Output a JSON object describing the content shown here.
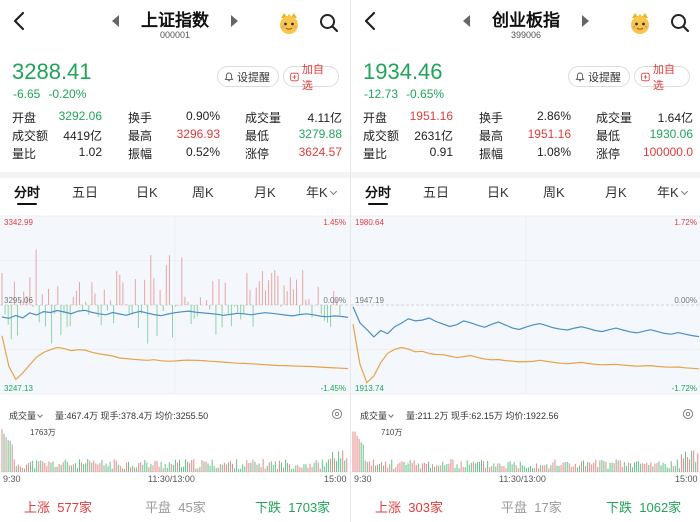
{
  "panels": [
    {
      "title": "上证指数",
      "code": "000001",
      "price": "3288.41",
      "change": "-6.65",
      "change_pct": "-0.20%",
      "buttons": {
        "alert": "设提醒",
        "add": "加自选"
      },
      "stats": [
        [
          {
            "k": "开盘",
            "v": "3292.06",
            "c": "g"
          },
          {
            "k": "换手",
            "v": "0.90%",
            "c": "d"
          },
          {
            "k": "成交量",
            "v": "4.11亿",
            "c": "d"
          }
        ],
        [
          {
            "k": "成交额",
            "v": "4419亿",
            "c": "d"
          },
          {
            "k": "最高",
            "v": "3296.93",
            "c": "r"
          },
          {
            "k": "最低",
            "v": "3279.88",
            "c": "g"
          }
        ],
        [
          {
            "k": "量比",
            "v": "1.02",
            "c": "d"
          },
          {
            "k": "振幅",
            "v": "0.52%",
            "c": "d"
          },
          {
            "k": "涨停",
            "v": "3624.57",
            "c": "r"
          }
        ]
      ],
      "tabs": [
        "分时",
        "五日",
        "日K",
        "周K",
        "月K",
        "年K"
      ],
      "active_tab": "分时",
      "chart": {
        "y_top": "3342.99",
        "y_mid": "3295.06",
        "y_bottom": "3247.13",
        "pct_top": "1.45%",
        "pct_mid": "0.00%",
        "pct_bottom": "-1.45%",
        "line_color": "#4a8fc6",
        "avg_color": "#e8a14a",
        "price_series": [
          3288.6,
          3287.9,
          3289.4,
          3288.1,
          3290.8,
          3289.7,
          3291.5,
          3291.0,
          3292.1,
          3291.3,
          3290.4,
          3291.8,
          3292.2,
          3291.1,
          3290.3,
          3289.8,
          3291.0,
          3290.2,
          3289.5,
          3290.8,
          3291.6,
          3290.7,
          3289.9,
          3289.3,
          3290.2,
          3290.9,
          3291.4,
          3291.8,
          3291.2,
          3290.8,
          3290.5,
          3290.1,
          3289.5,
          3290.0,
          3290.6,
          3290.3,
          3289.8,
          3290.4,
          3290.9,
          3290.6,
          3290.1,
          3289.6,
          3289.2,
          3289.9,
          3290.3,
          3289.8,
          3289.1,
          3288.7,
          3289.2,
          3288.9,
          3288.4
        ],
        "avg_series": [
          3278.5,
          3262.0,
          3255.0,
          3258.5,
          3262.8,
          3267.0,
          3269.5,
          3271.0,
          3272.2,
          3271.5,
          3270.5,
          3271.0,
          3270.8,
          3269.6,
          3268.8,
          3268.2,
          3267.6,
          3266.5,
          3266.2,
          3265.8,
          3265.5,
          3265.3,
          3265.6,
          3265.0,
          3264.8,
          3264.9,
          3265.2,
          3265.4,
          3265.3,
          3265.1,
          3264.8,
          3264.6,
          3264.3,
          3264.0,
          3263.7,
          3263.6,
          3263.4,
          3263.2,
          3262.9,
          3262.7,
          3262.5,
          3262.4,
          3262.2,
          3262.1,
          3262.0,
          3261.9,
          3261.6,
          3261.4,
          3261.2,
          3261.0,
          3260.8
        ]
      },
      "volume": {
        "label": "成交量",
        "total": "量:467.4万",
        "current": "现手:378.4万",
        "avg": "均价:3255.50",
        "max": "1763万",
        "t_start": "9:30",
        "t_mid": "11:30/13:00",
        "t_end": "15:00"
      },
      "breadth": {
        "up_label": "上涨",
        "up": "577家",
        "flat_label": "平盘",
        "flat": "45家",
        "down_label": "下跌",
        "down": "1703家"
      }
    },
    {
      "title": "创业板指",
      "code": "399006",
      "price": "1934.46",
      "change": "-12.73",
      "change_pct": "-0.65%",
      "buttons": {
        "alert": "设提醒",
        "add": "加自选"
      },
      "stats": [
        [
          {
            "k": "开盘",
            "v": "1951.16",
            "c": "r"
          },
          {
            "k": "换手",
            "v": "2.86%",
            "c": "d"
          },
          {
            "k": "成交量",
            "v": "1.64亿",
            "c": "d"
          }
        ],
        [
          {
            "k": "成交额",
            "v": "2631亿",
            "c": "d"
          },
          {
            "k": "最高",
            "v": "1951.16",
            "c": "r"
          },
          {
            "k": "最低",
            "v": "1930.06",
            "c": "g"
          }
        ],
        [
          {
            "k": "量比",
            "v": "0.91",
            "c": "d"
          },
          {
            "k": "振幅",
            "v": "1.08%",
            "c": "d"
          },
          {
            "k": "涨停",
            "v": "100000.0",
            "c": "r"
          }
        ]
      ],
      "tabs": [
        "分时",
        "五日",
        "日K",
        "周K",
        "月K",
        "年K"
      ],
      "active_tab": "分时",
      "chart": {
        "y_top": "1980.64",
        "y_mid": "1947.19",
        "y_bottom": "1913.74",
        "pct_top": "1.72%",
        "pct_mid": "0.00%",
        "pct_bottom": "-1.72%",
        "line_color": "#4a8fc6",
        "avg_color": "#e8a14a",
        "price_series": [
          1946.5,
          1940.5,
          1938.0,
          1935.2,
          1937.6,
          1936.4,
          1939.0,
          1940.4,
          1942.0,
          1941.2,
          1941.5,
          1942.3,
          1941.0,
          1940.0,
          1939.1,
          1939.8,
          1941.2,
          1940.5,
          1939.6,
          1938.8,
          1939.9,
          1940.8,
          1939.7,
          1938.6,
          1938.0,
          1938.9,
          1939.7,
          1940.2,
          1939.4,
          1938.6,
          1938.1,
          1937.8,
          1938.5,
          1939.0,
          1938.4,
          1937.6,
          1937.2,
          1937.9,
          1938.5,
          1937.8,
          1937.1,
          1936.7,
          1937.3,
          1937.9,
          1937.2,
          1936.5,
          1936.2,
          1936.8,
          1936.2,
          1935.7,
          1935.3
        ],
        "avg_series": [
          1940.0,
          1925.0,
          1918.0,
          1920.5,
          1925.5,
          1929.0,
          1930.5,
          1931.2,
          1930.6,
          1929.6,
          1929.8,
          1929.0,
          1928.6,
          1928.5,
          1928.0,
          1927.4,
          1927.8,
          1928.2,
          1927.5,
          1926.9,
          1926.6,
          1926.7,
          1926.3,
          1926.1,
          1925.8,
          1925.9,
          1926.0,
          1926.4,
          1926.0,
          1925.6,
          1925.3,
          1925.1,
          1925.4,
          1925.6,
          1925.2,
          1924.9,
          1924.7,
          1924.8,
          1924.9,
          1924.6,
          1924.4,
          1924.2,
          1924.3,
          1924.4,
          1924.1,
          1923.9,
          1923.8,
          1923.9,
          1923.6,
          1923.4,
          1923.2
        ]
      },
      "volume": {
        "label": "成交量",
        "total": "量:211.2万",
        "current": "现手:62.15万",
        "avg": "均价:1922.56",
        "max": "710万",
        "t_start": "9:30",
        "t_mid": "11:30/13:00",
        "t_end": "15:00"
      },
      "breadth": {
        "up_label": "上涨",
        "up": "303家",
        "flat_label": "平盘",
        "flat": "17家",
        "down_label": "下跌",
        "down": "1062家"
      }
    }
  ]
}
